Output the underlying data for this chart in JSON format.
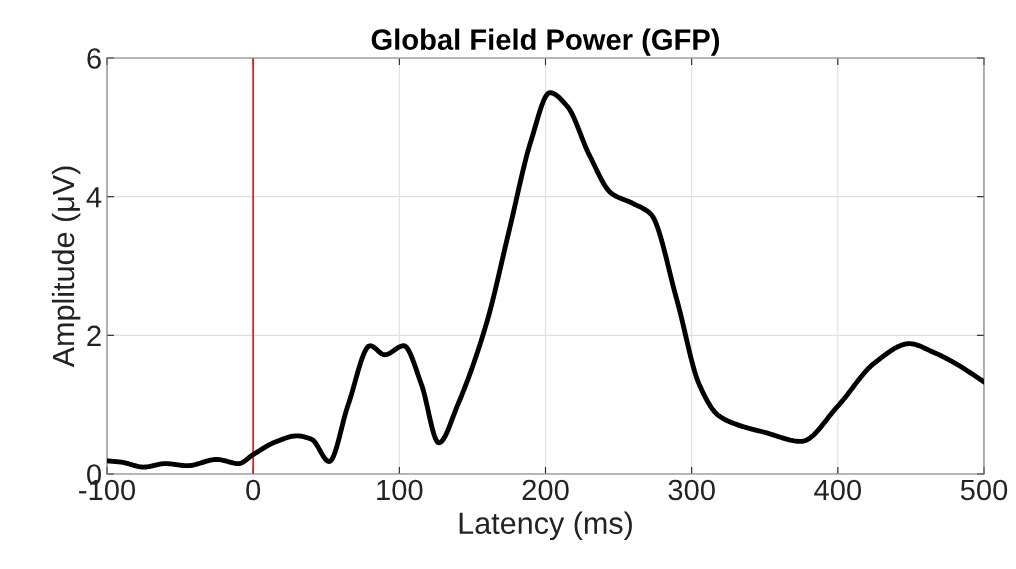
{
  "chart_data": {
    "type": "line",
    "title": "Global Field Power (GFP)",
    "xlabel": "Latency (ms)",
    "ylabel": "Amplitude (μV)",
    "x": [
      -100,
      -90,
      -75,
      -60,
      -45,
      -25,
      -10,
      0,
      15,
      30,
      40,
      52,
      65,
      80,
      90,
      103,
      115,
      127,
      140,
      160,
      175,
      190,
      203,
      215,
      230,
      245,
      260,
      272,
      290,
      305,
      318,
      330,
      350,
      375,
      400,
      425,
      449,
      465,
      480,
      500
    ],
    "series": [
      {
        "color": "#000000",
        "values": [
          0.19,
          0.17,
          0.1,
          0.15,
          0.12,
          0.21,
          0.15,
          0.28,
          0.46,
          0.55,
          0.5,
          0.18,
          1.0,
          1.85,
          1.72,
          1.85,
          1.3,
          0.45,
          1.0,
          2.2,
          3.5,
          4.8,
          5.5,
          5.3,
          4.6,
          4.05,
          3.9,
          3.75,
          2.5,
          1.3,
          0.85,
          0.72,
          0.6,
          0.47,
          0.98,
          1.6,
          1.88,
          1.76,
          1.6,
          1.33
        ]
      }
    ],
    "xlim": [
      -100,
      500
    ],
    "xticks": [
      -100,
      0,
      100,
      200,
      300,
      400,
      500
    ],
    "ylim": [
      0,
      6
    ],
    "yticks": [
      0,
      2,
      4,
      6
    ],
    "ref_lines": [
      {
        "axis": "x",
        "value": 0,
        "color": "#e8191a"
      }
    ],
    "grid": true,
    "marker": "none",
    "line_style": "solid"
  }
}
